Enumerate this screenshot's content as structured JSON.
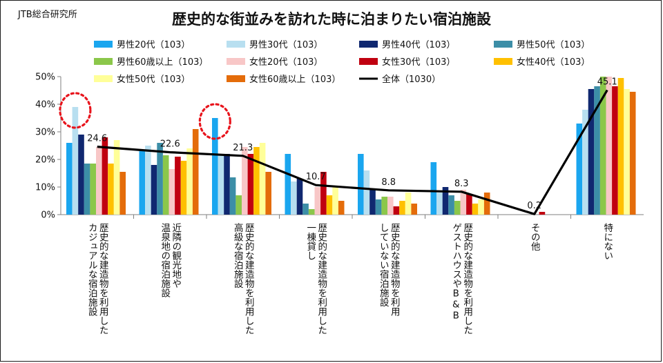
{
  "brand": "JTB総合研究所",
  "chart_data": {
    "type": "bar",
    "title": "歴史的な街並みを訪れた時に泊まりたい宿泊施設",
    "ylim": [
      0,
      50
    ],
    "ytick_labels": [
      "0%",
      "10%",
      "20%",
      "30%",
      "40%",
      "50%"
    ],
    "grid": false,
    "legend_position": "top",
    "categories": [
      "歴史的な建造物を利用した\nカジュアルな宿泊施設",
      "近隣の観光地や\n温泉地の宿泊施設",
      "歴史的な建造物を利用した\n高級な宿泊施設",
      "歴史的な建造物を利用した\n一棟貸し",
      "歴史的な建造物を利用\nしていない宿泊施設",
      "歴史的な建造物を利用した\nゲストハウスやB&B",
      "その他",
      "特にない"
    ],
    "series": [
      {
        "name": "男性20代（103）",
        "color": "#1aa6ef",
        "values": [
          26,
          23,
          35,
          22,
          22,
          19,
          0,
          33
        ]
      },
      {
        "name": "男性30代（103）",
        "color": "#b8dff0",
        "values": [
          39,
          25,
          22,
          12,
          16,
          8,
          0,
          38
        ]
      },
      {
        "name": "男性40代（103）",
        "color": "#102870",
        "values": [
          29,
          18,
          22,
          13,
          9,
          10,
          0,
          45.5
        ]
      },
      {
        "name": "男性50代（103）",
        "color": "#3c8ea7",
        "values": [
          18.5,
          26,
          13.5,
          4,
          5.5,
          7,
          0,
          46.5
        ]
      },
      {
        "name": "男性60歳以上（103）",
        "color": "#8bc74a",
        "values": [
          18.5,
          21.5,
          7,
          2,
          6.5,
          5,
          0,
          50
        ]
      },
      {
        "name": "女性20代（103）",
        "color": "#f8c7c7",
        "values": [
          24.5,
          16.5,
          24.5,
          10,
          6.5,
          9,
          0,
          50
        ]
      },
      {
        "name": "女性30代（103）",
        "color": "#c00010",
        "values": [
          28,
          21,
          22,
          15.5,
          3,
          7.5,
          1,
          46.5
        ]
      },
      {
        "name": "女性40代（103）",
        "color": "#ffc000",
        "values": [
          18.5,
          19.5,
          24.5,
          7,
          5,
          4,
          0,
          49.5
        ]
      },
      {
        "name": "女性50代（103）",
        "color": "#ffff99",
        "values": [
          27,
          24,
          26,
          10,
          8,
          5.5,
          0,
          45.5
        ]
      },
      {
        "name": "女性60歳以上（103）",
        "color": "#e46c0a",
        "values": [
          15.5,
          31,
          15.5,
          5,
          4,
          8,
          0,
          44.5
        ]
      }
    ],
    "line_series": {
      "name": "全体（1030）",
      "color": "#000000",
      "values": [
        24.6,
        22.6,
        21.3,
        10.7,
        8.8,
        8.3,
        0.2,
        45.1
      ]
    },
    "data_labels": [
      "24.6",
      "22.6",
      "21.3",
      "10.7",
      "8.8",
      "8.3",
      "0.2",
      "45.1"
    ],
    "highlight_circles": [
      {
        "category_index": 0,
        "series_index": 1,
        "color": "#e8141c"
      },
      {
        "category_index": 2,
        "series_index": 0,
        "color": "#e8141c"
      }
    ]
  }
}
